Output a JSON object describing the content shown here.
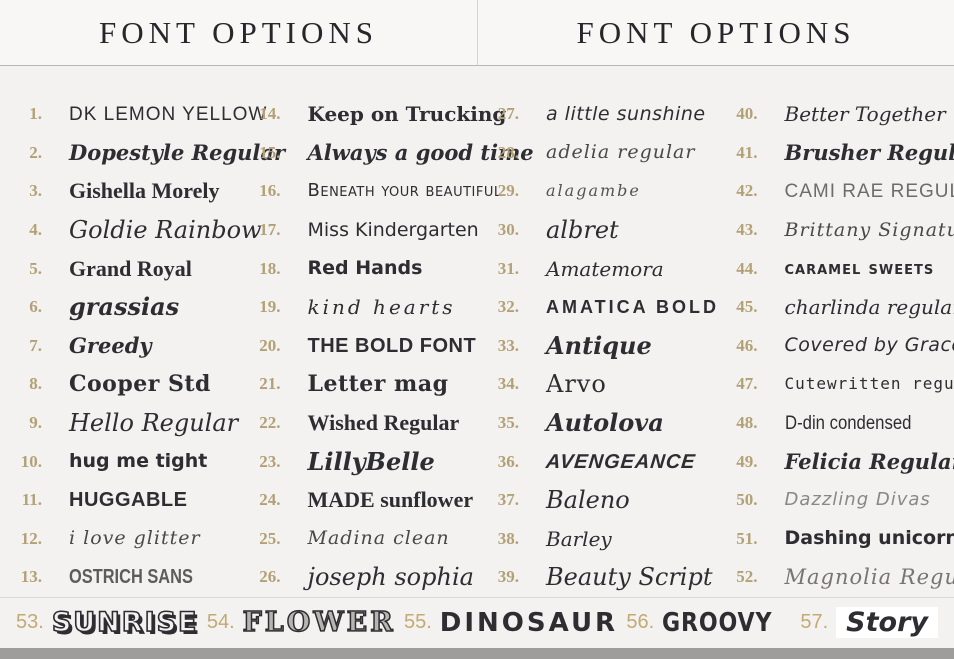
{
  "palette": {
    "background": "#f3f2f0",
    "number_accent": "#b3a176",
    "ink": "#2e2d32",
    "bottom_strip": "#9e9d9b"
  },
  "panels": [
    {
      "title": "FONT OPTIONS",
      "columns": [
        {
          "items": [
            {
              "num": "1.",
              "name": "DK LEMON YELLOW",
              "style": "capshand"
            },
            {
              "num": "2.",
              "name": "Dopestyle Regular",
              "style": "scrbold"
            },
            {
              "num": "3.",
              "name": "Gishella Morely",
              "style": "serifbold"
            },
            {
              "num": "4.",
              "name": "Goldie Rainbow",
              "style": "scrbig"
            },
            {
              "num": "5.",
              "name": "Grand Royal",
              "style": "serifbold"
            },
            {
              "num": "6.",
              "name": "grassias",
              "style": "scrbigbold"
            },
            {
              "num": "7.",
              "name": "Greedy",
              "style": "scrbold"
            },
            {
              "num": "8.",
              "name": "Cooper Std",
              "style": "serifheavy"
            },
            {
              "num": "9.",
              "name": "Hello Regular",
              "style": "scrbig"
            },
            {
              "num": "10.",
              "name": "hug me tight",
              "style": "roundbold"
            },
            {
              "num": "11.",
              "name": "HUGGABLE",
              "style": "heavy"
            },
            {
              "num": "12.",
              "name": "i love glitter",
              "style": "scrthin"
            },
            {
              "num": "13.",
              "name": "OSTRICH SANS",
              "style": "capsgray"
            }
          ]
        },
        {
          "items": [
            {
              "num": "14.",
              "name": "Keep on Trucking",
              "style": "slab"
            },
            {
              "num": "15.",
              "name": "Always a good time",
              "style": "scrbold"
            },
            {
              "num": "16.",
              "name": "Beneath your beautiful",
              "style": "smallcaps"
            },
            {
              "num": "17.",
              "name": "Miss Kindergarten",
              "style": "round"
            },
            {
              "num": "18.",
              "name": "Red Hands",
              "style": "roundbold"
            },
            {
              "num": "19.",
              "name": "kind hearts",
              "style": "scrmono"
            },
            {
              "num": "20.",
              "name": "THE BOLD FONT",
              "style": "heavy"
            },
            {
              "num": "21.",
              "name": "Letter mag",
              "style": "serifheavy"
            },
            {
              "num": "22.",
              "name": "Wished Regular",
              "style": "serifbold"
            },
            {
              "num": "23.",
              "name": "LillyBelle",
              "style": "scrbigbold"
            },
            {
              "num": "24.",
              "name": "MADE sunflower",
              "style": "serifbold"
            },
            {
              "num": "25.",
              "name": "Madina clean",
              "style": "scrthin"
            },
            {
              "num": "26.",
              "name": "joseph sophia",
              "style": "scrbig"
            }
          ]
        }
      ]
    },
    {
      "title": "FONT OPTIONS",
      "columns": [
        {
          "items": [
            {
              "num": "27.",
              "name": "a little sunshine",
              "style": "hand"
            },
            {
              "num": "28.",
              "name": "adelia regular",
              "style": "scrthin"
            },
            {
              "num": "29.",
              "name": "alagambe",
              "style": "scrtiny"
            },
            {
              "num": "30.",
              "name": "albret",
              "style": "scrbig"
            },
            {
              "num": "31.",
              "name": "Amatemora",
              "style": "scr"
            },
            {
              "num": "32.",
              "name": "AMATICA BOLD",
              "style": "capsbold"
            },
            {
              "num": "33.",
              "name": "Antique",
              "style": "scrbigbold"
            },
            {
              "num": "34.",
              "name": "Arvo",
              "style": "slabbig"
            },
            {
              "num": "35.",
              "name": "Autolova",
              "style": "scrbigbold"
            },
            {
              "num": "36.",
              "name": "AVENGEANCE",
              "style": "aveng"
            },
            {
              "num": "37.",
              "name": "Baleno",
              "style": "scrbig"
            },
            {
              "num": "38.",
              "name": "Barley",
              "style": "scr"
            },
            {
              "num": "39.",
              "name": "Beauty Script",
              "style": "scrbig"
            }
          ]
        },
        {
          "items": [
            {
              "num": "40.",
              "name": "Better Together",
              "style": "scr"
            },
            {
              "num": "41.",
              "name": "Brusher Regular",
              "style": "scrbold"
            },
            {
              "num": "42.",
              "name": "CAMI RAE REGULAR",
              "style": "capsthin"
            },
            {
              "num": "43.",
              "name": "Brittany Signature",
              "style": "scrthin"
            },
            {
              "num": "44.",
              "name": "caramel sweets",
              "style": "roundsc"
            },
            {
              "num": "45.",
              "name": "charlinda regular",
              "style": "scr"
            },
            {
              "num": "46.",
              "name": "Covered by Grace",
              "style": "hand"
            },
            {
              "num": "47.",
              "name": "Cutewritten regular",
              "style": "mono"
            },
            {
              "num": "48.",
              "name": "D-din condensed",
              "style": "cond"
            },
            {
              "num": "49.",
              "name": "Felicia Regular",
              "style": "scrbold"
            },
            {
              "num": "50.",
              "name": "Dazzling Divas",
              "style": "handgray"
            },
            {
              "num": "51.",
              "name": "Dashing unicorn",
              "style": "roundbold"
            },
            {
              "num": "52.",
              "name": "Magnolia Regular",
              "style": "scrlight"
            }
          ]
        }
      ]
    }
  ],
  "bottom_row": {
    "items": [
      {
        "num": "53.",
        "name": "SUNRISE",
        "style": "outline"
      },
      {
        "num": "54.",
        "name": "FLOWER",
        "style": "pattern"
      },
      {
        "num": "55.",
        "name": "DINOSAUR",
        "style": "heavybig"
      },
      {
        "num": "56.",
        "name": "GROOVY",
        "style": "heavycond"
      },
      {
        "num": "57.",
        "name": "Story",
        "style": "story"
      }
    ]
  }
}
